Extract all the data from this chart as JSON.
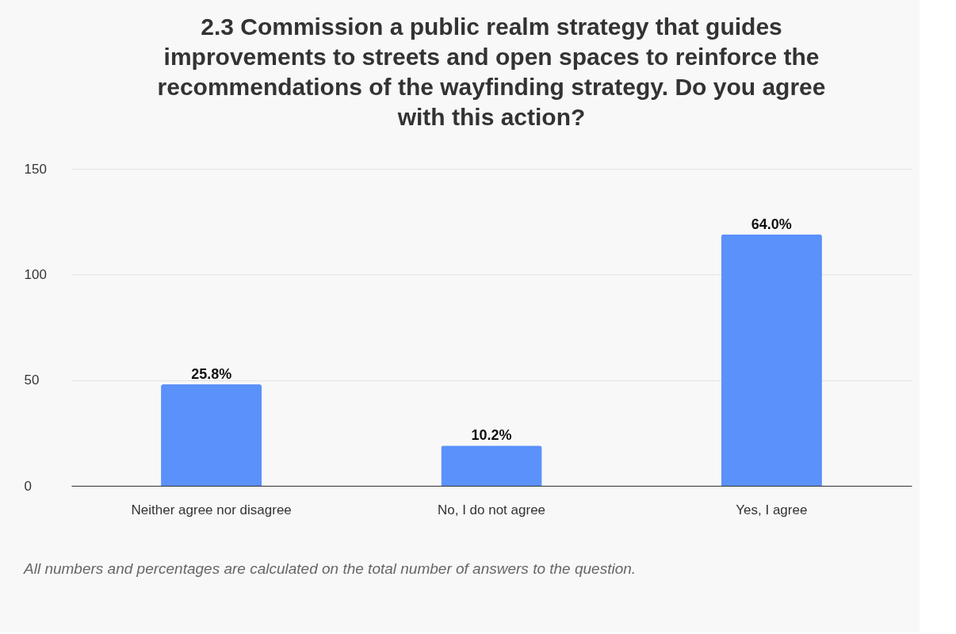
{
  "chart_data": {
    "type": "bar",
    "title": "2.3 Commission a public realm strategy that guides improvements to streets and open spaces to reinforce the recommendations of the wayfinding strategy. Do you agree with this action?",
    "categories": [
      "Neither agree nor disagree",
      "No, I do not agree",
      "Yes, I agree"
    ],
    "values": [
      48,
      19,
      119
    ],
    "color": "#5b91fb",
    "ylim": [
      0,
      150
    ],
    "yticks": [
      0,
      50,
      100,
      150
    ],
    "grid": "y",
    "annotations": [
      {
        "text": "25.8%",
        "x": "Neither agree nor disagree",
        "y": 48
      },
      {
        "text": "10.2%",
        "x": "No, I do not agree",
        "y": 19
      },
      {
        "text": "64.0%",
        "x": "Yes, I agree",
        "y": 119
      },
      "All numbers and percentages are calculated on the total number of answers to the question."
    ]
  }
}
